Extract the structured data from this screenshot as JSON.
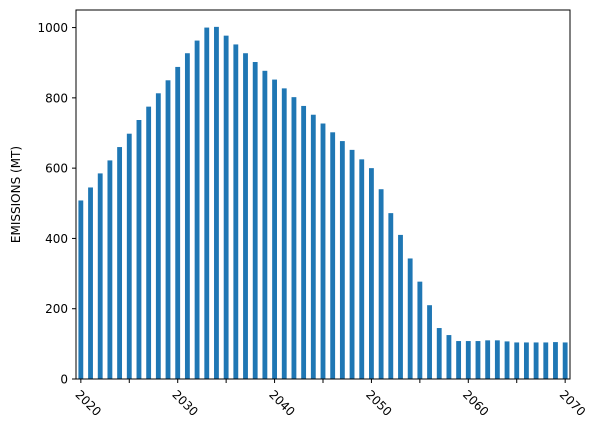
{
  "chart_data": {
    "type": "bar",
    "title": "",
    "xlabel": "",
    "ylabel": "EMISSIONS (MT)",
    "x_tick_labels": [
      "2020",
      "2030",
      "2040",
      "2050",
      "2060",
      "2070"
    ],
    "y_ticks": [
      0,
      200,
      400,
      600,
      800,
      1000
    ],
    "ylim": [
      0,
      1050
    ],
    "categories": [
      2020,
      2021,
      2022,
      2023,
      2024,
      2025,
      2026,
      2027,
      2028,
      2029,
      2030,
      2031,
      2032,
      2033,
      2034,
      2035,
      2036,
      2037,
      2038,
      2039,
      2040,
      2041,
      2042,
      2043,
      2044,
      2045,
      2046,
      2047,
      2048,
      2049,
      2050,
      2051,
      2052,
      2053,
      2054,
      2055,
      2056,
      2057,
      2058,
      2059,
      2060,
      2061,
      2062,
      2063,
      2064,
      2065,
      2066,
      2067,
      2068,
      2069,
      2070
    ],
    "values": [
      508,
      545,
      585,
      622,
      660,
      698,
      737,
      775,
      813,
      850,
      888,
      927,
      963,
      1000,
      1002,
      977,
      952,
      927,
      902,
      877,
      852,
      827,
      802,
      777,
      752,
      727,
      702,
      677,
      652,
      625,
      600,
      540,
      472,
      410,
      343,
      277,
      210,
      145,
      125,
      108,
      108,
      108,
      110,
      110,
      107,
      104,
      104,
      104,
      104,
      105,
      104
    ],
    "bar_color": "#1f77b4",
    "grid": false,
    "legend": "none"
  }
}
